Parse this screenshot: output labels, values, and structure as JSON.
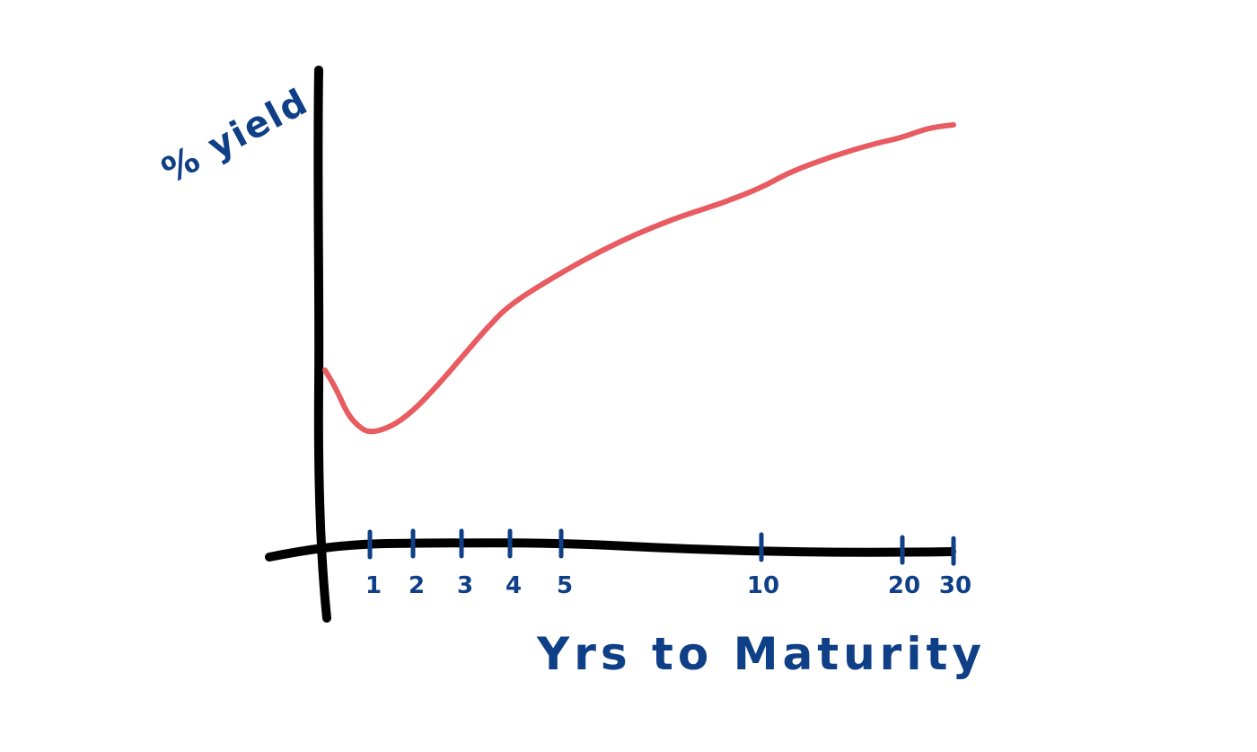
{
  "chart_data": {
    "type": "line",
    "xlabel": "Yrs to Maturity",
    "ylabel": "% yield",
    "x_ticks": [
      "1",
      "2",
      "3",
      "4",
      "5",
      "10",
      "20",
      "30"
    ],
    "series": [
      {
        "x": [
          0,
          0.25,
          0.5,
          0.75,
          1,
          1.5,
          2,
          2.5,
          3,
          3.5,
          4,
          5,
          6,
          7,
          8,
          9,
          10,
          12,
          15,
          18,
          20,
          25,
          30
        ],
        "values": [
          0.58,
          0.52,
          0.44,
          0.4,
          0.38,
          0.4,
          0.45,
          0.53,
          0.62,
          0.71,
          0.79,
          0.89,
          0.96,
          1.02,
          1.07,
          1.11,
          1.16,
          1.21,
          1.26,
          1.3,
          1.32,
          1.35,
          1.36
        ]
      }
    ],
    "colors": {
      "curve": "#e85b60",
      "axes": "#000000",
      "labels": "#0f3f86"
    },
    "grid": false,
    "legend": "none"
  }
}
